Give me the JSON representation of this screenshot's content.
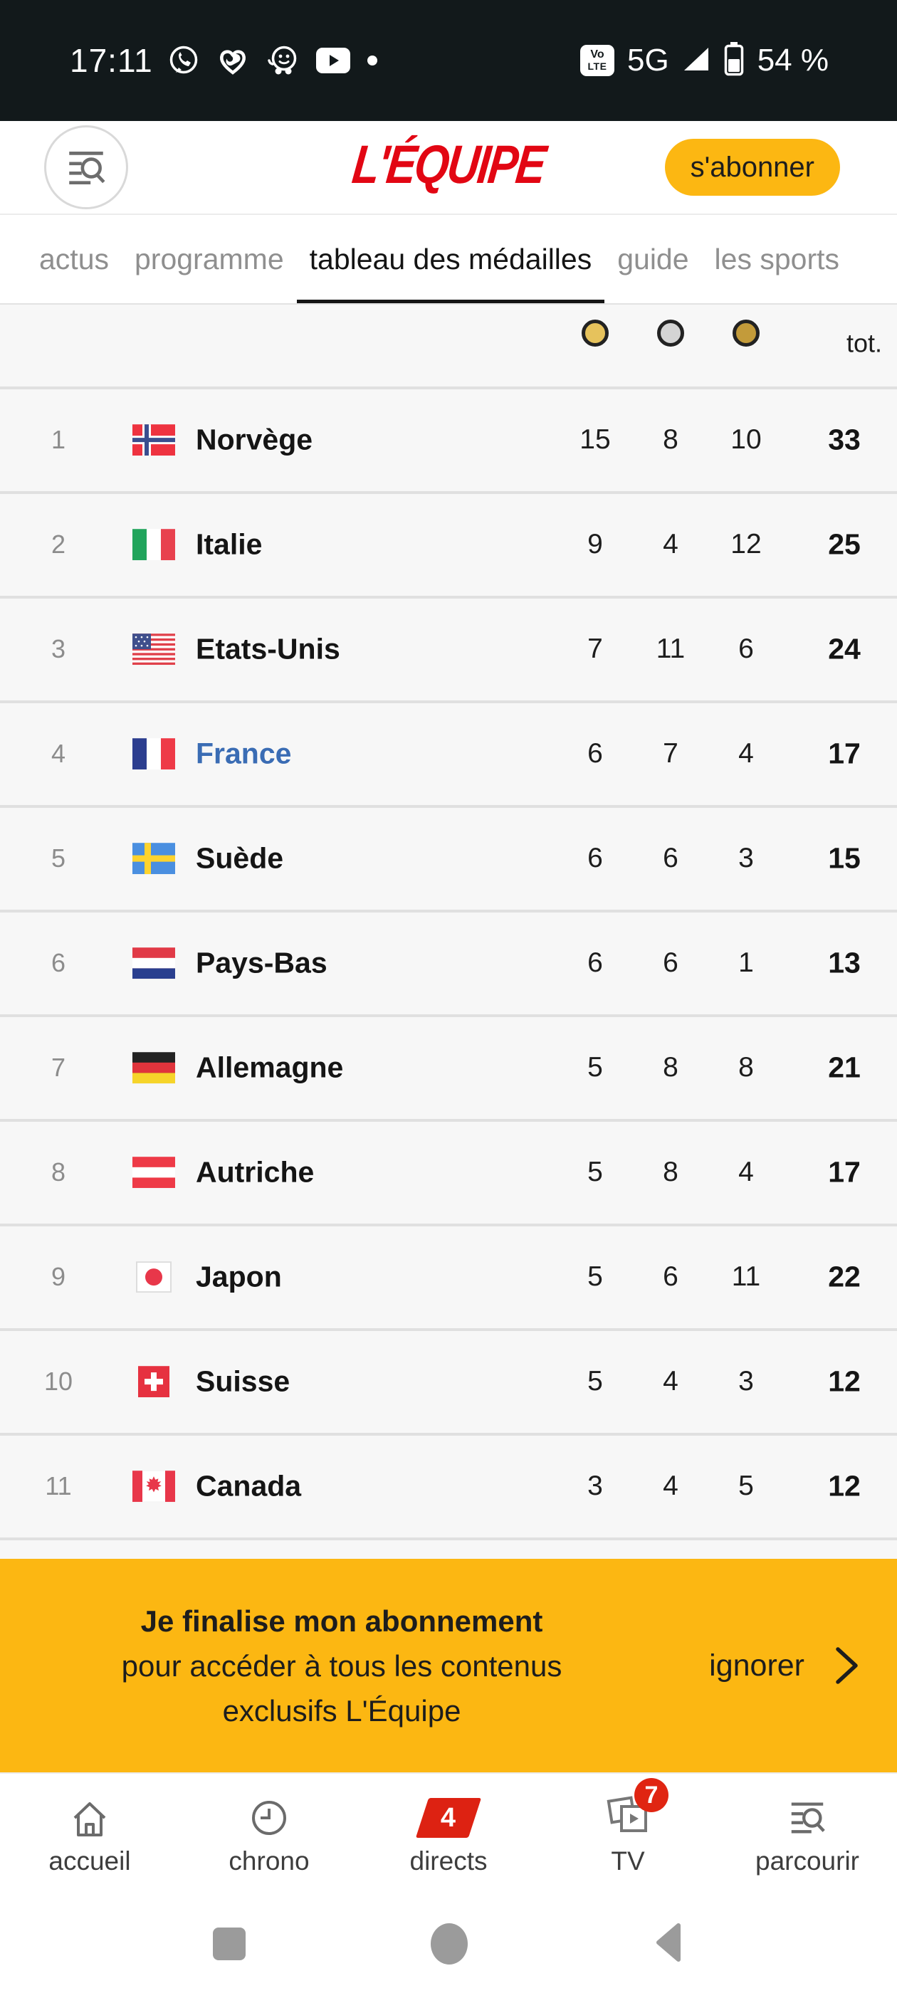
{
  "status_bar": {
    "time": "17:11",
    "notification_icons": [
      "whatsapp-icon",
      "health-heart-icon",
      "waze-icon",
      "youtube-icon",
      "notification-dot"
    ],
    "volte_top": "Vo",
    "volte_bottom": "LTE",
    "network": "5G",
    "battery_percent": "54 %"
  },
  "header": {
    "logo_text": "L'ÉQUIPE",
    "subscribe_label": "s'abonner"
  },
  "tabs": [
    {
      "id": "actus",
      "label": "actus",
      "active": false
    },
    {
      "id": "programme",
      "label": "programme",
      "active": false
    },
    {
      "id": "tableau-des-medailles",
      "label": "tableau des médailles",
      "active": true
    },
    {
      "id": "guide",
      "label": "guide",
      "active": false
    },
    {
      "id": "les-sports",
      "label": "les sports",
      "active": false
    }
  ],
  "medal_table": {
    "column_icons": [
      "gold-medal",
      "silver-medal",
      "bronze-medal"
    ],
    "total_label": "tot.",
    "rows": [
      {
        "rank": "1",
        "flag": "norway",
        "country": "Norvège",
        "gold": "15",
        "silver": "8",
        "bronze": "10",
        "total": "33",
        "highlight": false
      },
      {
        "rank": "2",
        "flag": "italy",
        "country": "Italie",
        "gold": "9",
        "silver": "4",
        "bronze": "12",
        "total": "25",
        "highlight": false
      },
      {
        "rank": "3",
        "flag": "usa",
        "country": "Etats-Unis",
        "gold": "7",
        "silver": "11",
        "bronze": "6",
        "total": "24",
        "highlight": false
      },
      {
        "rank": "4",
        "flag": "france",
        "country": "France",
        "gold": "6",
        "silver": "7",
        "bronze": "4",
        "total": "17",
        "highlight": true
      },
      {
        "rank": "5",
        "flag": "sweden",
        "country": "Suède",
        "gold": "6",
        "silver": "6",
        "bronze": "3",
        "total": "15",
        "highlight": false
      },
      {
        "rank": "6",
        "flag": "netherlands",
        "country": "Pays-Bas",
        "gold": "6",
        "silver": "6",
        "bronze": "1",
        "total": "13",
        "highlight": false
      },
      {
        "rank": "7",
        "flag": "germany",
        "country": "Allemagne",
        "gold": "5",
        "silver": "8",
        "bronze": "8",
        "total": "21",
        "highlight": false
      },
      {
        "rank": "8",
        "flag": "austria",
        "country": "Autriche",
        "gold": "5",
        "silver": "8",
        "bronze": "4",
        "total": "17",
        "highlight": false
      },
      {
        "rank": "9",
        "flag": "japan",
        "country": "Japon",
        "gold": "5",
        "silver": "6",
        "bronze": "11",
        "total": "22",
        "highlight": false
      },
      {
        "rank": "10",
        "flag": "switzerland",
        "country": "Suisse",
        "gold": "5",
        "silver": "4",
        "bronze": "3",
        "total": "12",
        "highlight": false
      },
      {
        "rank": "11",
        "flag": "canada",
        "country": "Canada",
        "gold": "3",
        "silver": "4",
        "bronze": "5",
        "total": "12",
        "highlight": false
      }
    ]
  },
  "banner": {
    "title": "Je finalise mon abonnement",
    "subtitle_line1": "pour accéder à tous les contenus",
    "subtitle_line2": "exclusifs L'Équipe",
    "dismiss_label": "ignorer"
  },
  "bottom_nav": {
    "items": [
      {
        "label": "accueil",
        "icon": "home-icon"
      },
      {
        "label": "chrono",
        "icon": "clock-icon"
      },
      {
        "label": "directs",
        "icon": "live-tag-icon",
        "badge": "4"
      },
      {
        "label": "TV",
        "icon": "tv-icon",
        "badge": "7"
      },
      {
        "label": "parcourir",
        "icon": "browse-search-icon"
      }
    ]
  },
  "colors": {
    "accent_yellow": "#fcb712",
    "brand_red": "#e20613",
    "live_red": "#dd2212",
    "france_blue": "#3a6cb4",
    "gold": "#e6c25c",
    "silver": "#d4d4d4",
    "bronze": "#c39b3a"
  }
}
